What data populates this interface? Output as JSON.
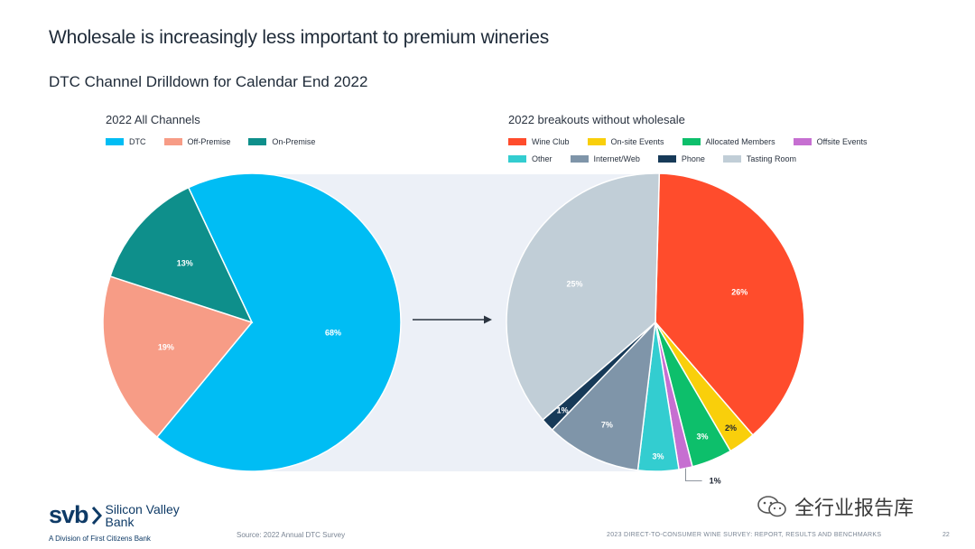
{
  "title": "Wholesale is increasingly less important to premium wineries",
  "subtitle": "DTC Channel Drilldown for Calendar End 2022",
  "chart_data": [
    {
      "type": "pie",
      "title": "2022 All Channels",
      "slices": [
        {
          "label": "DTC",
          "value": 68,
          "display": "68%",
          "color": "#00bdf4"
        },
        {
          "label": "Off-Premise",
          "value": 19,
          "display": "19%",
          "color": "#f79c86"
        },
        {
          "label": "On-Premise",
          "value": 13,
          "display": "13%",
          "color": "#0e8f8b"
        }
      ]
    },
    {
      "type": "pie",
      "title": "2022 breakouts without wholesale",
      "slices": [
        {
          "label": "Wine Club",
          "value": 26,
          "display": "26%",
          "color": "#ff4c2c"
        },
        {
          "label": "On-site Events",
          "value": 2,
          "display": "2%",
          "color": "#f9cf0b"
        },
        {
          "label": "Allocated Members",
          "value": 3,
          "display": "3%",
          "color": "#0dbf6b"
        },
        {
          "label": "Offsite Events",
          "value": 1,
          "display": "1%",
          "color": "#c66fd1"
        },
        {
          "label": "Other",
          "value": 3,
          "display": "3%",
          "color": "#33cdd0"
        },
        {
          "label": "Internet/Web",
          "value": 7,
          "display": "7%",
          "color": "#7f95a9"
        },
        {
          "label": "Phone",
          "value": 1,
          "display": "1%",
          "color": "#173a58"
        },
        {
          "label": "Tasting Room",
          "value": 25,
          "display": "25%",
          "color": "#c1ced7"
        }
      ]
    }
  ],
  "logo": {
    "mark": "svb",
    "name_line1": "Silicon Valley",
    "name_line2": "Bank",
    "tagline": "A Division of First Citizens Bank"
  },
  "source": "Source: 2022 Annual DTC Survey",
  "footer": "2023 DIRECT-TO-CONSUMER WINE SURVEY: REPORT, RESULTS AND BENCHMARKS",
  "page_number": "22",
  "watermark": "全行业报告库"
}
